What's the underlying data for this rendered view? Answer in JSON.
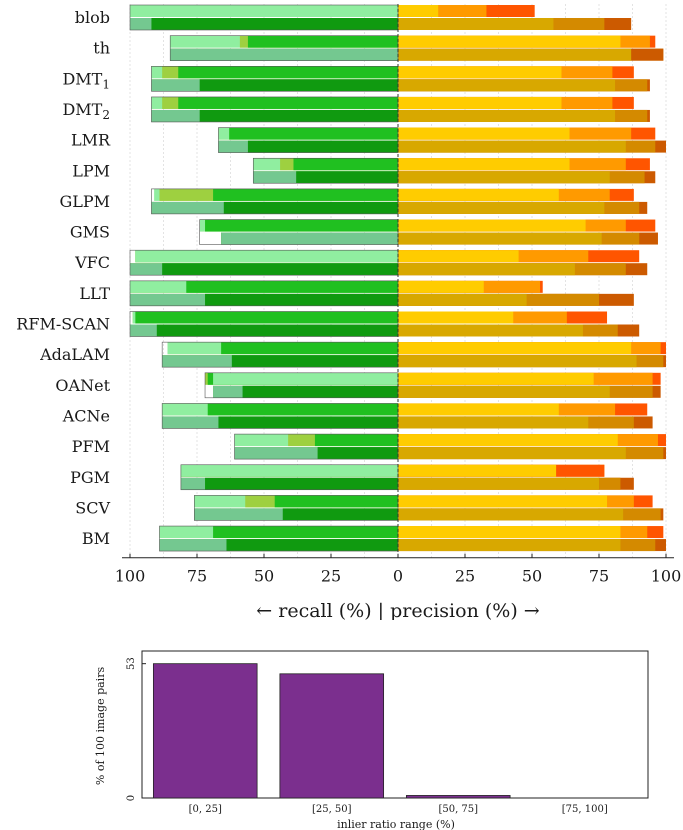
{
  "chart_data": [
    {
      "type": "bar",
      "orientation": "horizontal-diverging",
      "methods": [
        "blob",
        "th",
        "DMT₁",
        "DMT₂",
        "LMR",
        "LPM",
        "GLPM",
        "GMS",
        "VFC",
        "LLT",
        "RFM-SCAN",
        "AdaLAM",
        "OANet",
        "ACNe",
        "PFM",
        "PGM",
        "SCV",
        "BM"
      ],
      "xlabel": "← recall (%) | precision (%) →",
      "recall_ticks": [
        "100",
        "75",
        "50",
        "25",
        "0"
      ],
      "precision_ticks": [
        "25",
        "50",
        "75",
        "100"
      ],
      "xlim": [
        -100,
        100
      ],
      "grid": true,
      "recall_colors_top": [
        "#20c020",
        "#9ed040",
        "#90eea0"
      ],
      "recall_colors_bottom": [
        "#109a10",
        "#7ea62c",
        "#74c890"
      ],
      "precision_colors_top": [
        "#ffcc00",
        "#ff9a00",
        "#ff5500"
      ],
      "precision_colors_bottom": [
        "#d8a800",
        "#d48a00",
        "#cc5a00"
      ],
      "recall_top": [
        [
          100,
          100,
          100
        ],
        [
          56,
          59,
          85
        ],
        [
          82,
          88,
          92
        ],
        [
          82,
          88,
          92
        ],
        [
          63,
          67,
          67
        ],
        [
          39,
          44,
          54
        ],
        [
          69,
          89,
          91
        ],
        [
          72,
          74,
          74
        ],
        [
          98,
          98,
          98
        ],
        [
          79,
          100,
          100
        ],
        [
          98,
          99,
          99
        ],
        [
          66,
          86,
          86
        ],
        [
          71,
          72,
          69
        ],
        [
          71,
          88,
          88
        ],
        [
          31,
          41,
          61
        ],
        [
          81,
          81,
          81
        ],
        [
          46,
          57,
          76
        ],
        [
          69,
          89,
          89
        ]
      ],
      "recall_bottom": [
        [
          92,
          100,
          100
        ],
        [
          85,
          85,
          85
        ],
        [
          74,
          92,
          92
        ],
        [
          74,
          92,
          92
        ],
        [
          56,
          67,
          67
        ],
        [
          38,
          54,
          54
        ],
        [
          65,
          92,
          92
        ],
        [
          66,
          66,
          66
        ],
        [
          88,
          100,
          100
        ],
        [
          72,
          100,
          100
        ],
        [
          90,
          100,
          100
        ],
        [
          62,
          88,
          88
        ],
        [
          58,
          69,
          69
        ],
        [
          67,
          88,
          88
        ],
        [
          30,
          61,
          61
        ],
        [
          72,
          81,
          81
        ],
        [
          43,
          76,
          76
        ],
        [
          64,
          89,
          89
        ]
      ],
      "precision_top": [
        [
          15,
          33,
          51
        ],
        [
          83,
          94,
          96
        ],
        [
          61,
          80,
          88
        ],
        [
          61,
          80,
          88
        ],
        [
          64,
          87,
          96
        ],
        [
          64,
          85,
          94
        ],
        [
          60,
          79,
          88
        ],
        [
          70,
          85,
          96
        ],
        [
          45,
          71,
          90
        ],
        [
          32,
          53,
          54
        ],
        [
          43,
          63,
          78
        ],
        [
          87,
          98,
          100
        ],
        [
          73,
          95,
          98
        ],
        [
          60,
          81,
          93
        ],
        [
          82,
          97,
          100
        ],
        [
          59,
          77,
          77
        ],
        [
          78,
          88,
          95
        ],
        [
          83,
          93,
          99
        ]
      ],
      "precision_bottom": [
        [
          58,
          77,
          87
        ],
        [
          87,
          99,
          99
        ],
        [
          81,
          93,
          94
        ],
        [
          81,
          93,
          94
        ],
        [
          85,
          96,
          100
        ],
        [
          79,
          92,
          96
        ],
        [
          77,
          90,
          93
        ],
        [
          76,
          90,
          97
        ],
        [
          66,
          85,
          93
        ],
        [
          48,
          75,
          88
        ],
        [
          69,
          82,
          90
        ],
        [
          89,
          99,
          100
        ],
        [
          79,
          95,
          98
        ],
        [
          71,
          88,
          95
        ],
        [
          85,
          99,
          100
        ],
        [
          75,
          83,
          88
        ],
        [
          84,
          98,
          99
        ],
        [
          83,
          96,
          100
        ]
      ]
    },
    {
      "type": "bar",
      "categories": [
        "[0, 25]",
        "[25, 50]",
        "[50, 75]",
        "[75, 100]"
      ],
      "values": [
        53,
        49,
        1,
        0
      ],
      "ylabel": "% of 100 image pairs",
      "xlabel": "inlier ratio range (%)",
      "yticks": [
        "0",
        "53"
      ],
      "ylim": [
        0,
        58
      ],
      "color": "#7b2f8e"
    }
  ]
}
